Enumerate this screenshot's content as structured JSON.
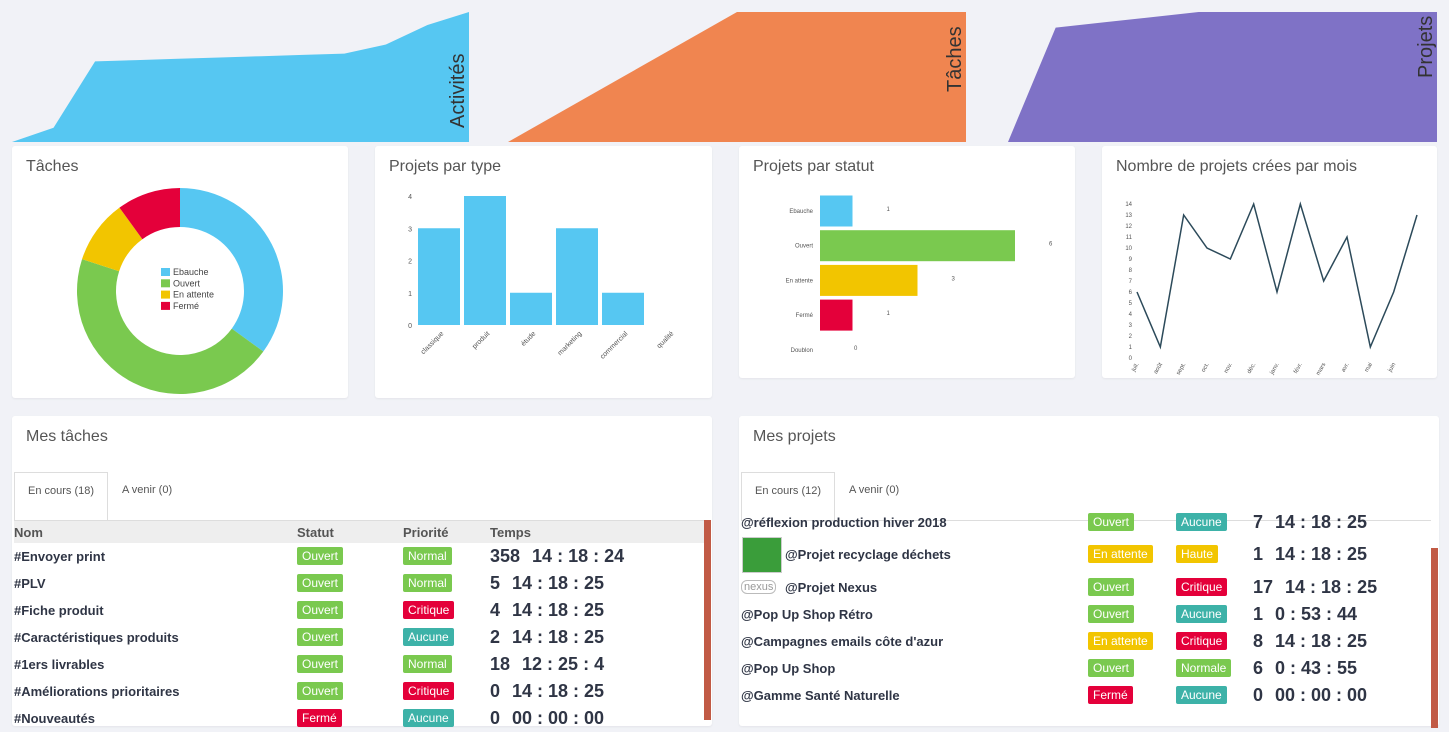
{
  "sparklines": [
    {
      "label": "Activités",
      "color": "#56c7f2",
      "values": [
        0,
        11,
        62,
        63,
        64,
        65,
        66,
        67,
        68,
        75,
        90,
        100
      ]
    },
    {
      "label": "Tâches",
      "color": "#f08550",
      "values": [
        0,
        25,
        50,
        75,
        100,
        100,
        100,
        100,
        100
      ]
    },
    {
      "label": "Projets",
      "color": "#7f72c6",
      "values": [
        0,
        88,
        92,
        96,
        100,
        100,
        100,
        100,
        100,
        100
      ]
    }
  ],
  "charts": [
    {
      "type": "donut",
      "title": "Tâches",
      "categories": [
        "Ebauche",
        "Ouvert",
        "En attente",
        "Fermé"
      ],
      "colors": [
        "#56c7f2",
        "#7ac94f",
        "#f2c500",
        "#e4003a"
      ],
      "values": [
        35,
        45,
        10,
        10
      ]
    },
    {
      "type": "bar",
      "title": "Projets par type",
      "categories": [
        "classique",
        "produit",
        "étude",
        "marketing",
        "commercial",
        "qualité"
      ],
      "values": [
        3,
        4,
        1,
        3,
        1,
        0
      ],
      "color": "#56c7f2",
      "ylim": [
        0,
        4
      ],
      "yticks": [
        0,
        1,
        2,
        3,
        4
      ]
    },
    {
      "type": "hbar",
      "title": "Projets par statut",
      "categories": [
        "Ebauche",
        "Ouvert",
        "En attente",
        "Fermé",
        "Doublon"
      ],
      "values": [
        1,
        6,
        3,
        1,
        0
      ],
      "colors": [
        "#56c7f2",
        "#7ac94f",
        "#f2c500",
        "#e4003a",
        "#999999"
      ],
      "xlim": [
        0,
        6
      ]
    },
    {
      "type": "line",
      "title": "Nombre de projets crées par mois",
      "categories": [
        "juil.",
        "août",
        "sept.",
        "oct.",
        "nov.",
        "déc.",
        "janv.",
        "févr.",
        "mars",
        "avr.",
        "mai",
        "juin",
        null
      ],
      "values": [
        6,
        1,
        13,
        10,
        9,
        14,
        6,
        14,
        7,
        11,
        1,
        6,
        13
      ],
      "color": "#2c4a5a",
      "ylim": [
        0,
        14
      ],
      "yticks": [
        0,
        1,
        2,
        3,
        4,
        5,
        6,
        7,
        8,
        9,
        10,
        11,
        12,
        13,
        14
      ]
    }
  ],
  "badge_colors": {
    "Ouvert": "#7ac94f",
    "Normal": "#7ac94f",
    "Normale": "#7ac94f",
    "Critique": "#e4003a",
    "Aucune": "#3db2a8",
    "En attente": "#f2c500",
    "Haute": "#f2c500",
    "Fermé": "#e4003a"
  },
  "tasks": {
    "title": "Mes tâches",
    "tabs": [
      "En cours (18)",
      "A venir (0)"
    ],
    "columns": [
      "Nom",
      "Statut",
      "Priorité",
      "Temps"
    ],
    "rows": [
      [
        "#Envoyer print",
        "Ouvert",
        "Normal",
        "358",
        "14 : 18 : 24"
      ],
      [
        "#PLV",
        "Ouvert",
        "Normal",
        "5",
        "14 : 18 : 25"
      ],
      [
        "#Fiche produit",
        "Ouvert",
        "Critique",
        "4",
        "14 : 18 : 25"
      ],
      [
        "#Caractéristiques produits",
        "Ouvert",
        "Aucune",
        "2",
        "14 : 18 : 25"
      ],
      [
        "#1ers livrables",
        "Ouvert",
        "Normal",
        "18",
        "12 : 25 : 4"
      ],
      [
        "#Améliorations prioritaires",
        "Ouvert",
        "Critique",
        "0",
        "14 : 18 : 25"
      ],
      [
        "#Nouveautés",
        "Fermé",
        "Aucune",
        "0",
        "00 : 00 : 00"
      ]
    ]
  },
  "projects": {
    "title": "Mes projets",
    "tabs": [
      "En cours (12)",
      "A venir (0)"
    ],
    "logo": "nexus",
    "rows": [
      [
        "@réflexion production hiver 2018",
        "Ouvert",
        "Aucune",
        "7",
        "14 : 18 : 25"
      ],
      [
        "@Projet recyclage déchets",
        "En attente",
        "Haute",
        "1",
        "14 : 18 : 25"
      ],
      [
        "@Projet Nexus",
        "Ouvert",
        "Critique",
        "17",
        "14 : 18 : 25"
      ],
      [
        "@Pop Up Shop Rétro",
        "Ouvert",
        "Aucune",
        "1",
        "0 : 53 : 44"
      ],
      [
        "@Campagnes emails côte d'azur",
        "En attente",
        "Critique",
        "8",
        "14 : 18 : 25"
      ],
      [
        "@Pop Up Shop",
        "Ouvert",
        "Normale",
        "6",
        "0 : 43 : 55"
      ],
      [
        "@Gamme Santé Naturelle",
        "Fermé",
        "Aucune",
        "0",
        "00 : 00 : 00"
      ]
    ]
  }
}
